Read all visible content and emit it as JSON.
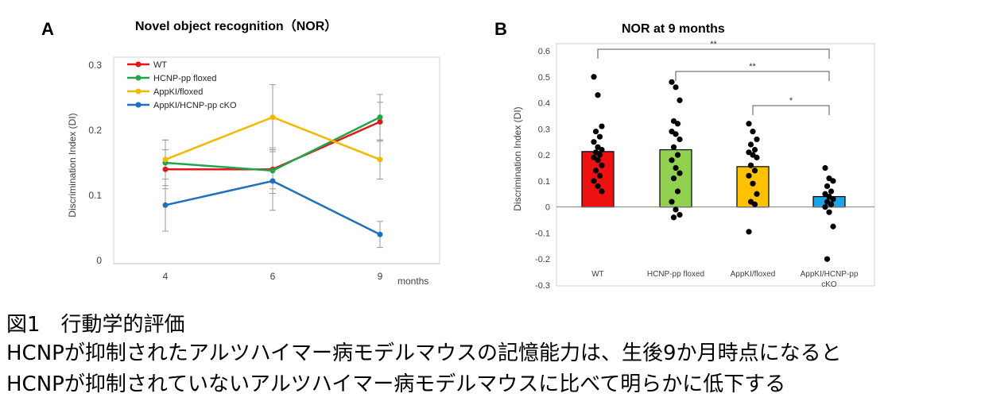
{
  "chart_data": [
    {
      "panel_label": "A",
      "type": "line",
      "title": "Novel object recognition（NOR）",
      "xlabel": "months",
      "ylabel": "Discrimination Index (DI)",
      "categories": [
        "4",
        "6",
        "9"
      ],
      "ylim": [
        0,
        0.3
      ],
      "yticks": [
        "0",
        "0.1",
        "0.2",
        "0.3"
      ],
      "legend_position": "top-left",
      "grid": false,
      "series": [
        {
          "name": "WT",
          "color": "#e8141b",
          "values": [
            0.14,
            0.14,
            0.213
          ],
          "errors": [
            0.03,
            0.03,
            0.03
          ]
        },
        {
          "name": "HCNP-pp floxed",
          "color": "#1fa64a",
          "values": [
            0.15,
            0.138,
            0.22
          ],
          "errors": [
            0.035,
            0.035,
            0.035
          ]
        },
        {
          "name": "AppKI/floxed",
          "color": "#f5b800",
          "values": [
            0.155,
            0.22,
            0.155
          ],
          "errors": [
            0.03,
            0.05,
            0.03
          ]
        },
        {
          "name": "AppKI/HCNP-pp cKO",
          "color": "#1f6fc1",
          "values": [
            0.085,
            0.122,
            0.04
          ],
          "errors": [
            0.04,
            0.045,
            0.02
          ]
        }
      ]
    },
    {
      "panel_label": "B",
      "type": "bar",
      "title": "NOR at 9 months",
      "xlabel": "",
      "ylabel": "Discrimination Index (DI)",
      "categories": [
        "WT",
        "HCNP-pp floxed",
        "AppKI/floxed",
        "AppKI/HCNP-pp cKO"
      ],
      "category_lines": [
        [
          "WT"
        ],
        [
          "HCNP-pp floxed"
        ],
        [
          "AppKI/floxed"
        ],
        [
          "AppKI/HCNP-pp",
          "cKO"
        ]
      ],
      "values": [
        0.213,
        0.22,
        0.155,
        0.04
      ],
      "colors": [
        "#ee1111",
        "#92d050",
        "#ffc000",
        "#1ea3e6"
      ],
      "ylim": [
        -0.3,
        0.6
      ],
      "yticks": [
        "-0.3",
        "-0.2",
        "-0.1",
        "0",
        "0.1",
        "0.2",
        "0.3",
        "0.4",
        "0.5",
        "0.6"
      ],
      "grid": false,
      "points": [
        [
          0.5,
          0.43,
          0.31,
          0.29,
          0.27,
          0.25,
          0.23,
          0.22,
          0.21,
          0.2,
          0.19,
          0.18,
          0.16,
          0.14,
          0.12,
          0.1,
          0.08,
          0.06
        ],
        [
          0.48,
          0.46,
          0.41,
          0.33,
          0.32,
          0.29,
          0.28,
          0.26,
          0.23,
          0.2,
          0.18,
          0.15,
          0.13,
          0.11,
          0.06,
          0.02,
          -0.01,
          -0.03,
          -0.04
        ],
        [
          0.32,
          0.29,
          0.26,
          0.24,
          0.22,
          0.21,
          0.2,
          0.19,
          0.16,
          0.14,
          0.12,
          0.09,
          0.05,
          0.02,
          0.01,
          -0.095
        ],
        [
          0.15,
          0.11,
          0.1,
          0.08,
          0.06,
          0.05,
          0.04,
          0.03,
          0.02,
          0.01,
          0.0,
          -0.02,
          -0.075,
          -0.2
        ]
      ],
      "significance": [
        {
          "from": 0,
          "to": 3,
          "label": "**"
        },
        {
          "from": 1,
          "to": 3,
          "label": "**"
        },
        {
          "from": 2,
          "to": 3,
          "label": "*"
        }
      ]
    }
  ],
  "caption": {
    "title": "図1　行動学的評価",
    "line1": "HCNPが抑制されたアルツハイマー病モデルマウスの記憶能力は、生後9か月時点になると",
    "line2": "HCNPが抑制されていないアルツハイマー病モデルマウスに比べて明らかに低下する"
  }
}
